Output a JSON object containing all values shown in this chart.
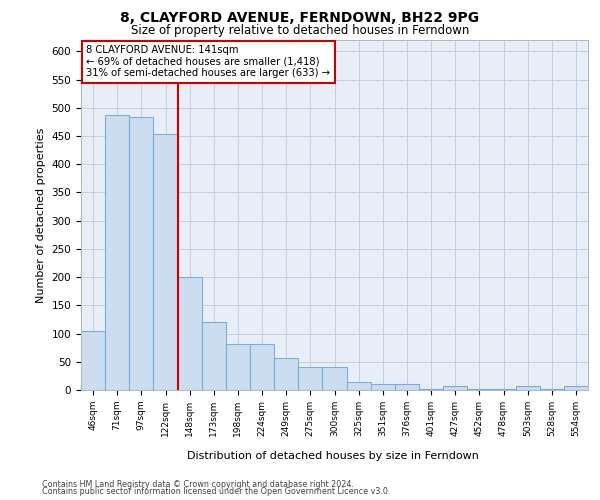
{
  "title1": "8, CLAYFORD AVENUE, FERNDOWN, BH22 9PG",
  "title2": "Size of property relative to detached houses in Ferndown",
  "xlabel": "Distribution of detached houses by size in Ferndown",
  "ylabel": "Number of detached properties",
  "categories": [
    "46sqm",
    "71sqm",
    "97sqm",
    "122sqm",
    "148sqm",
    "173sqm",
    "198sqm",
    "224sqm",
    "249sqm",
    "275sqm",
    "300sqm",
    "325sqm",
    "351sqm",
    "376sqm",
    "401sqm",
    "427sqm",
    "452sqm",
    "478sqm",
    "503sqm",
    "528sqm",
    "554sqm"
  ],
  "bar_values": [
    105,
    487,
    484,
    454,
    200,
    120,
    82,
    82,
    57,
    40,
    40,
    15,
    10,
    10,
    1,
    7,
    1,
    1,
    7,
    1,
    7
  ],
  "bar_color": "#ccddf0",
  "bar_edgecolor": "#7aafd4",
  "annotation_text1": "8 CLAYFORD AVENUE: 141sqm",
  "annotation_text2": "← 69% of detached houses are smaller (1,418)",
  "annotation_text3": "31% of semi-detached houses are larger (633) →",
  "red_line_color": "#cc0000",
  "ylim": [
    0,
    620
  ],
  "yticks": [
    0,
    50,
    100,
    150,
    200,
    250,
    300,
    350,
    400,
    450,
    500,
    550,
    600
  ],
  "footer1": "Contains HM Land Registry data © Crown copyright and database right 2024.",
  "footer2": "Contains public sector information licensed under the Open Government Licence v3.0.",
  "plot_bg_color": "#e8eef8"
}
